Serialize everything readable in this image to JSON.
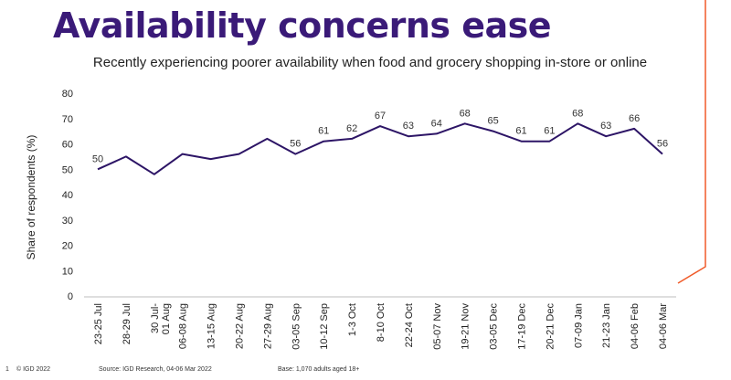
{
  "slide": {
    "title": "Availability concerns ease",
    "footer": {
      "page_number": "1",
      "copyright": "© IGD 2022",
      "source": "Source: IGD Research, 04-06 Mar 2022",
      "base": "Base: 1,070 adults aged 18+"
    }
  },
  "colors": {
    "title": "#3a1a78",
    "line": "#2d1566",
    "accent": "#f05a28"
  },
  "chart_data": {
    "type": "line",
    "title": "Recently experiencing poorer availability when food and grocery shopping in-store or online",
    "ylabel": "Share of respondents (%)",
    "xlabel": "",
    "ylim": [
      0,
      80
    ],
    "yticks": [
      0,
      10,
      20,
      30,
      40,
      50,
      60,
      70,
      80
    ],
    "grid": false,
    "categories": [
      "23-25 Jul",
      "28-29 Jul",
      "30 Jul-01 Aug",
      "06-08 Aug",
      "13-15 Aug",
      "20-22 Aug",
      "27-29 Aug",
      "03-05 Sep",
      "10-12 Sep",
      "1-3 Oct",
      "8-10 Oct",
      "22-24 Oct",
      "05-07 Nov",
      "19-21 Nov",
      "03-05 Dec",
      "17-19 Dec",
      "20-21 Dec",
      "07-09 Jan",
      "21-23 Jan",
      "04-06 Feb",
      "04-06 Mar"
    ],
    "values": [
      50,
      55,
      48,
      56,
      54,
      56,
      62,
      56,
      61,
      62,
      67,
      63,
      64,
      68,
      65,
      61,
      61,
      68,
      63,
      66,
      56
    ],
    "data_labels": [
      {
        "index": 0,
        "text": "50"
      },
      {
        "index": 7,
        "text": "56"
      },
      {
        "index": 8,
        "text": "61"
      },
      {
        "index": 9,
        "text": "62"
      },
      {
        "index": 10,
        "text": "67"
      },
      {
        "index": 11,
        "text": "63"
      },
      {
        "index": 12,
        "text": "64"
      },
      {
        "index": 13,
        "text": "68"
      },
      {
        "index": 14,
        "text": "65"
      },
      {
        "index": 15,
        "text": "61"
      },
      {
        "index": 16,
        "text": "61"
      },
      {
        "index": 17,
        "text": "68"
      },
      {
        "index": 18,
        "text": "63"
      },
      {
        "index": 19,
        "text": "66"
      },
      {
        "index": 20,
        "text": "56"
      }
    ]
  }
}
